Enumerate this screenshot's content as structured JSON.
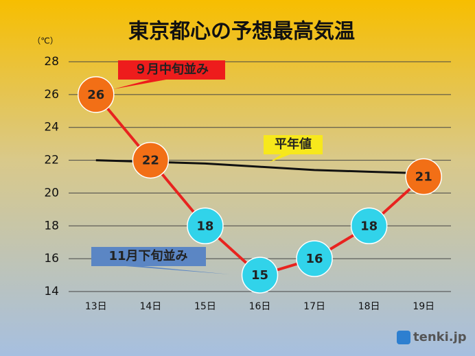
{
  "chart_data": {
    "type": "line",
    "title": "東京都心の予想最高気温",
    "y_label": "（℃）",
    "categories": [
      "13日",
      "14日",
      "15日",
      "16日",
      "17日",
      "18日",
      "19日"
    ],
    "series": [
      {
        "color": "#e8231f",
        "point_colors": [
          "#f26f16",
          "#f26f16",
          "#31d3ea",
          "#31d3ea",
          "#31d3ea",
          "#31d3ea",
          "#f26f16"
        ],
        "values": [
          26,
          22,
          18,
          15,
          16,
          18,
          21
        ]
      },
      {
        "name": "平年値",
        "color": "#111111",
        "values": [
          22.0,
          21.9,
          21.8,
          21.6,
          21.4,
          21.3,
          21.2
        ]
      }
    ],
    "annotations": [
      "９月中旬並み",
      "11月下旬並み"
    ],
    "ylim": [
      14,
      28
    ],
    "yticks": [
      14,
      16,
      18,
      20,
      22,
      24,
      26,
      28
    ],
    "grid": true,
    "logo": "tenki.jp"
  }
}
